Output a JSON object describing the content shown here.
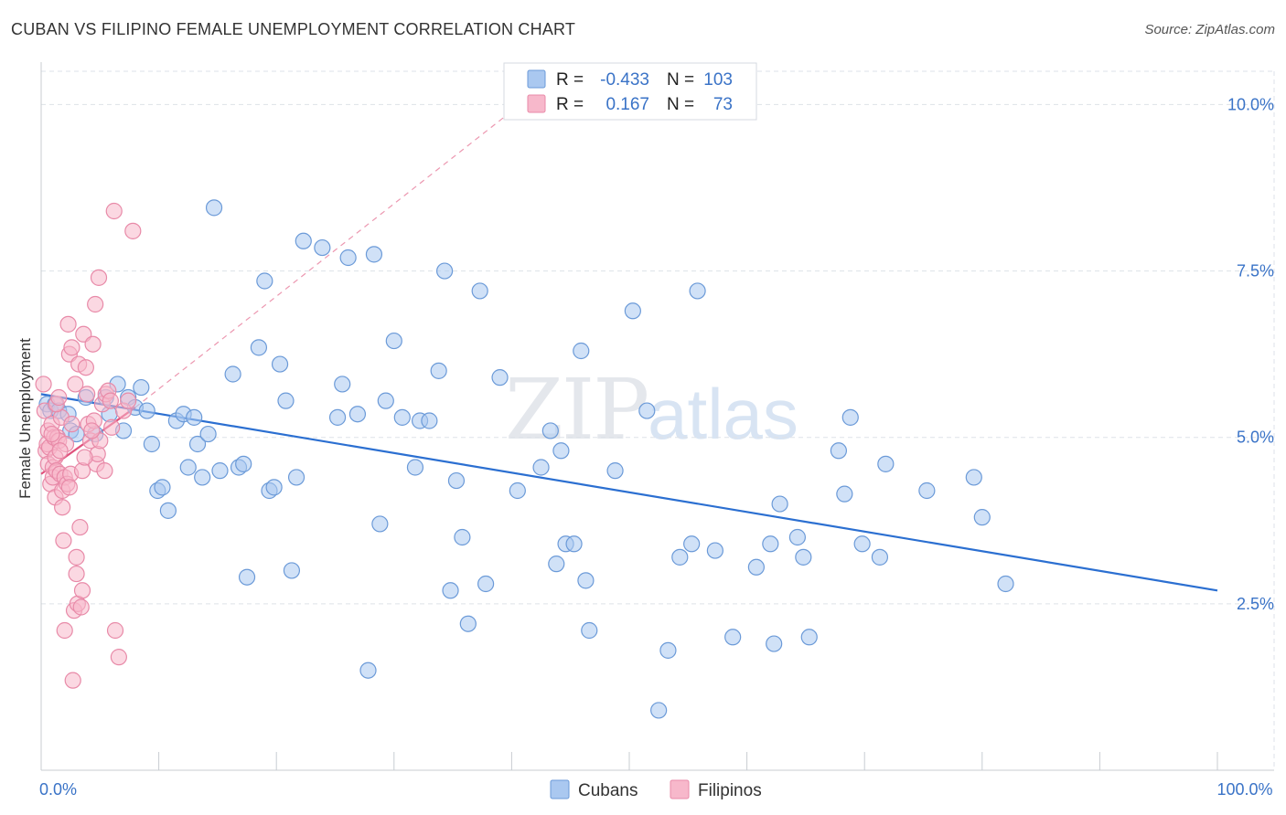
{
  "title": "CUBAN VS FILIPINO FEMALE UNEMPLOYMENT CORRELATION CHART",
  "source": "Source: ZipAtlas.com",
  "watermark": {
    "zip": "ZIP",
    "atlas": "atlas"
  },
  "colors": {
    "cubans_fill": "#aac8f0",
    "cubans_stroke": "#6b9ad8",
    "cubans_line": "#2b6fd1",
    "filipinos_fill": "#f7b8cb",
    "filipinos_stroke": "#e88aa8",
    "filipinos_line": "#e0517c",
    "axis_label": "#3a73c7",
    "grid": "#dde2e8"
  },
  "legend_box": {
    "rows": [
      {
        "r_label": "R =",
        "r_value": "-0.433",
        "n_label": "N =",
        "n_value": "103"
      },
      {
        "r_label": "R =",
        "r_value": "0.167",
        "n_label": "N =",
        "n_value": "73"
      }
    ]
  },
  "chart_data": {
    "type": "scatter",
    "title": "CUBAN VS FILIPINO FEMALE UNEMPLOYMENT CORRELATION CHART",
    "xlabel": "",
    "ylabel": "Female Unemployment",
    "xlim": [
      0,
      100
    ],
    "ylim": [
      0,
      10.5
    ],
    "x_tick_labels": [
      {
        "value": 0,
        "label": "0.0%"
      },
      {
        "value": 100,
        "label": "100.0%"
      }
    ],
    "y_ticks": [
      {
        "value": 2.5,
        "label": "2.5%"
      },
      {
        "value": 5.0,
        "label": "5.0%"
      },
      {
        "value": 7.5,
        "label": "7.5%"
      },
      {
        "value": 10.0,
        "label": "10.0%"
      }
    ],
    "legend": [
      "Cubans",
      "Filipinos"
    ],
    "series": [
      {
        "name": "Cubans",
        "r": -0.433,
        "n": 103,
        "trend": {
          "x": [
            0,
            100
          ],
          "y": [
            5.65,
            2.7
          ]
        },
        "points": [
          [
            0.5,
            5.5
          ],
          [
            0.8,
            5.4
          ],
          [
            1.2,
            5.5
          ],
          [
            1.5,
            5.4
          ],
          [
            2.3,
            5.35
          ],
          [
            2.5,
            5.1
          ],
          [
            3.0,
            5.05
          ],
          [
            3.8,
            5.6
          ],
          [
            4.6,
            5.05
          ],
          [
            5.5,
            5.6
          ],
          [
            5.8,
            5.35
          ],
          [
            6.5,
            5.8
          ],
          [
            7.0,
            5.1
          ],
          [
            7.4,
            5.6
          ],
          [
            8.0,
            5.45
          ],
          [
            8.5,
            5.75
          ],
          [
            9.0,
            5.4
          ],
          [
            9.4,
            4.9
          ],
          [
            9.9,
            4.2
          ],
          [
            10.3,
            4.25
          ],
          [
            10.8,
            3.9
          ],
          [
            11.5,
            5.25
          ],
          [
            12.1,
            5.35
          ],
          [
            12.5,
            4.55
          ],
          [
            13.0,
            5.3
          ],
          [
            13.3,
            4.9
          ],
          [
            13.7,
            4.4
          ],
          [
            14.2,
            5.05
          ],
          [
            14.7,
            8.45
          ],
          [
            15.2,
            4.5
          ],
          [
            16.3,
            5.95
          ],
          [
            16.8,
            4.55
          ],
          [
            17.2,
            4.6
          ],
          [
            17.5,
            2.9
          ],
          [
            18.5,
            6.35
          ],
          [
            19.0,
            7.35
          ],
          [
            19.4,
            4.2
          ],
          [
            19.8,
            4.25
          ],
          [
            20.3,
            6.1
          ],
          [
            20.8,
            5.55
          ],
          [
            21.3,
            3.0
          ],
          [
            21.7,
            4.4
          ],
          [
            22.3,
            7.95
          ],
          [
            23.9,
            7.85
          ],
          [
            25.2,
            5.3
          ],
          [
            25.6,
            5.8
          ],
          [
            26.1,
            7.7
          ],
          [
            26.9,
            5.35
          ],
          [
            27.8,
            1.5
          ],
          [
            28.3,
            7.75
          ],
          [
            28.8,
            3.7
          ],
          [
            29.3,
            5.55
          ],
          [
            30.0,
            6.45
          ],
          [
            30.7,
            5.3
          ],
          [
            31.8,
            4.55
          ],
          [
            32.2,
            5.25
          ],
          [
            33.0,
            5.25
          ],
          [
            33.8,
            6.0
          ],
          [
            34.3,
            7.5
          ],
          [
            34.8,
            2.7
          ],
          [
            35.3,
            4.35
          ],
          [
            35.8,
            3.5
          ],
          [
            36.3,
            2.2
          ],
          [
            37.3,
            7.2
          ],
          [
            37.8,
            2.8
          ],
          [
            40.5,
            4.2
          ],
          [
            42.5,
            4.55
          ],
          [
            43.3,
            5.1
          ],
          [
            43.8,
            3.1
          ],
          [
            44.2,
            4.8
          ],
          [
            44.6,
            3.4
          ],
          [
            45.3,
            3.4
          ],
          [
            45.9,
            6.3
          ],
          [
            46.3,
            2.85
          ],
          [
            46.6,
            2.1
          ],
          [
            48.8,
            4.5
          ],
          [
            50.3,
            6.9
          ],
          [
            51.5,
            5.4
          ],
          [
            52.5,
            0.9
          ],
          [
            53.3,
            1.8
          ],
          [
            54.3,
            3.2
          ],
          [
            55.3,
            3.4
          ],
          [
            55.8,
            7.2
          ],
          [
            57.3,
            3.3
          ],
          [
            58.8,
            2.0
          ],
          [
            60.8,
            3.05
          ],
          [
            62.0,
            3.4
          ],
          [
            62.3,
            1.9
          ],
          [
            62.8,
            4.0
          ],
          [
            64.3,
            3.5
          ],
          [
            64.8,
            3.2
          ],
          [
            65.3,
            2.0
          ],
          [
            67.8,
            4.8
          ],
          [
            68.3,
            4.15
          ],
          [
            68.8,
            5.3
          ],
          [
            69.8,
            3.4
          ],
          [
            71.3,
            3.2
          ],
          [
            71.8,
            4.6
          ],
          [
            75.3,
            4.2
          ],
          [
            79.3,
            4.4
          ],
          [
            80.0,
            3.8
          ],
          [
            82.0,
            2.8
          ],
          [
            39.0,
            5.9
          ]
        ]
      },
      {
        "name": "Filipinos",
        "r": 0.167,
        "n": 73,
        "trend": {
          "x": [
            0,
            8
          ],
          "y": [
            4.45,
            5.45
          ]
        },
        "trend_extension": {
          "x": [
            8,
            40
          ],
          "y": [
            5.45,
            9.9
          ]
        },
        "points": [
          [
            0.2,
            5.8
          ],
          [
            0.3,
            5.4
          ],
          [
            0.4,
            4.8
          ],
          [
            0.5,
            4.9
          ],
          [
            0.6,
            4.6
          ],
          [
            0.6,
            5.1
          ],
          [
            0.7,
            4.85
          ],
          [
            0.8,
            4.3
          ],
          [
            0.9,
            5.2
          ],
          [
            1.0,
            4.55
          ],
          [
            1.0,
            4.4
          ],
          [
            1.1,
            5.0
          ],
          [
            1.2,
            4.7
          ],
          [
            1.2,
            4.1
          ],
          [
            1.3,
            4.5
          ],
          [
            1.4,
            5.0
          ],
          [
            1.5,
            4.95
          ],
          [
            1.6,
            4.45
          ],
          [
            1.7,
            5.3
          ],
          [
            1.8,
            4.2
          ],
          [
            1.8,
            3.95
          ],
          [
            1.9,
            3.45
          ],
          [
            2.0,
            4.4
          ],
          [
            2.0,
            2.1
          ],
          [
            2.2,
            4.3
          ],
          [
            2.3,
            6.7
          ],
          [
            2.4,
            6.25
          ],
          [
            2.5,
            4.45
          ],
          [
            2.6,
            6.35
          ],
          [
            2.7,
            1.35
          ],
          [
            2.8,
            2.4
          ],
          [
            2.9,
            5.8
          ],
          [
            3.0,
            2.95
          ],
          [
            3.0,
            3.2
          ],
          [
            3.1,
            2.5
          ],
          [
            3.2,
            6.1
          ],
          [
            3.3,
            3.65
          ],
          [
            3.4,
            2.45
          ],
          [
            3.5,
            2.7
          ],
          [
            3.5,
            4.5
          ],
          [
            3.6,
            6.55
          ],
          [
            3.8,
            6.05
          ],
          [
            3.9,
            5.65
          ],
          [
            4.0,
            5.2
          ],
          [
            4.2,
            4.95
          ],
          [
            4.4,
            6.4
          ],
          [
            4.5,
            5.25
          ],
          [
            4.6,
            7.0
          ],
          [
            4.7,
            4.6
          ],
          [
            4.8,
            4.75
          ],
          [
            4.9,
            7.4
          ],
          [
            5.0,
            4.95
          ],
          [
            5.2,
            5.5
          ],
          [
            5.4,
            4.5
          ],
          [
            5.5,
            5.65
          ],
          [
            5.7,
            5.7
          ],
          [
            5.9,
            5.55
          ],
          [
            6.0,
            5.15
          ],
          [
            6.2,
            8.4
          ],
          [
            6.3,
            2.1
          ],
          [
            6.6,
            1.7
          ],
          [
            7.0,
            5.4
          ],
          [
            7.4,
            5.55
          ],
          [
            7.8,
            8.1
          ],
          [
            1.3,
            5.5
          ],
          [
            1.5,
            5.6
          ],
          [
            2.1,
            4.9
          ],
          [
            2.6,
            5.2
          ],
          [
            0.9,
            5.05
          ],
          [
            1.6,
            4.8
          ],
          [
            3.7,
            4.7
          ],
          [
            4.3,
            5.1
          ],
          [
            2.4,
            4.25
          ]
        ]
      }
    ]
  }
}
